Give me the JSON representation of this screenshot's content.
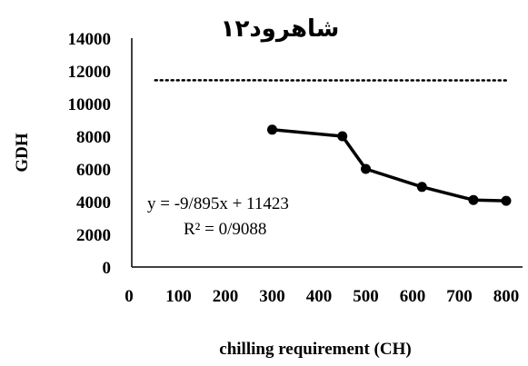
{
  "chart_data": {
    "type": "scatter",
    "title": "شاهرود۱۲",
    "xlabel": "chilling requirement (CH)",
    "ylabel": "GDH",
    "xlim": [
      0,
      800
    ],
    "ylim": [
      0,
      14000
    ],
    "x_ticks": [
      "0",
      "100",
      "200",
      "300",
      "400",
      "500",
      "600",
      "700",
      "800"
    ],
    "y_ticks": [
      "0",
      "2000",
      "4000",
      "6000",
      "8000",
      "10000",
      "12000",
      "14000"
    ],
    "grid": false,
    "series": [
      {
        "x": [
          300,
          450,
          500,
          620,
          730,
          800
        ],
        "y": [
          8400,
          8000,
          6000,
          4900,
          4100,
          4050
        ],
        "color": "#000000"
      }
    ],
    "trendline": {
      "type": "linear",
      "style": "dotted",
      "x_range": [
        50,
        800
      ],
      "equation": "y = -9/895x + 11423",
      "r_squared": "R² = 0/9088"
    }
  }
}
